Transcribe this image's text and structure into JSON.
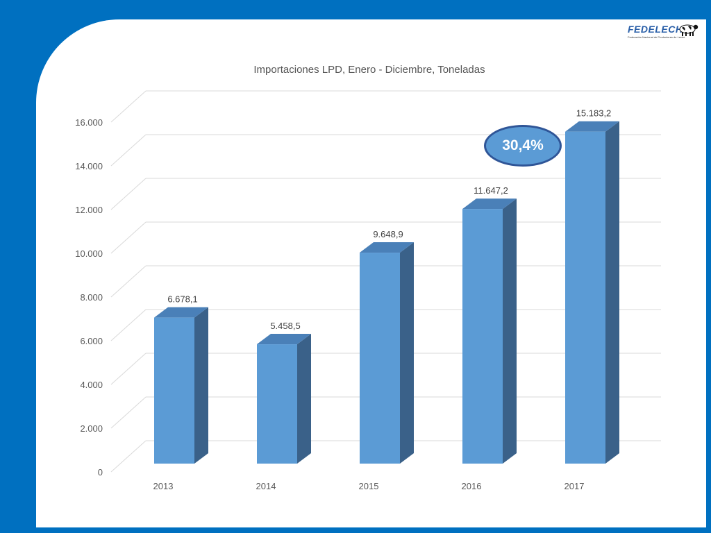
{
  "logo": {
    "name": "FEDELECHE",
    "tagline": "Federación Nacional de Productores de Leche"
  },
  "badge": {
    "text": "30,4%"
  },
  "colors": {
    "background": "#0070c0",
    "bar_front": "#5b9bd5",
    "bar_side": "#3a6189",
    "bar_top": "#4a80b8",
    "badge_fill": "#5b9bd5",
    "badge_border": "#2f5597"
  },
  "chart_data": {
    "type": "bar",
    "title": "Importaciones LPD, Enero - Diciembre, Toneladas",
    "categories": [
      "2013",
      "2014",
      "2015",
      "2016",
      "2017"
    ],
    "values": [
      6678.1,
      5458.5,
      9648.9,
      11647.2,
      15183.2
    ],
    "data_labels": [
      "6.678,1",
      "5.458,5",
      "9.648,9",
      "11.647,2",
      "15.183,2"
    ],
    "y_ticks": [
      0,
      2000,
      4000,
      6000,
      8000,
      10000,
      12000,
      14000,
      16000
    ],
    "y_tick_labels": [
      "0",
      "2.000",
      "4.000",
      "6.000",
      "8.000",
      "10.000",
      "12.000",
      "14.000",
      "16.000"
    ],
    "ylim": [
      0,
      16000
    ],
    "grid": true,
    "legend": "none",
    "style": "3d-column"
  }
}
